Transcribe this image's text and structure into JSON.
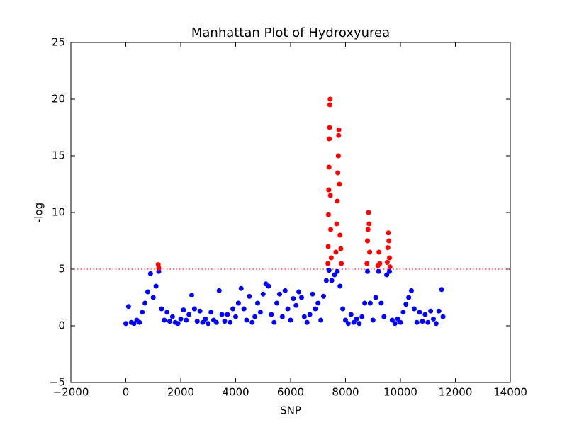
{
  "chart_data": {
    "type": "scatter",
    "title": "Manhattan Plot of Hydroxyurea",
    "x_label": "SNP",
    "y_label": "-log",
    "xlim": [
      -2000,
      14000
    ],
    "ylim": [
      -5,
      25
    ],
    "xticks": [
      {
        "value": -2000,
        "label": "−2000"
      },
      0,
      2000,
      4000,
      6000,
      8000,
      10000,
      12000,
      14000
    ],
    "yticks": [
      {
        "value": -5,
        "label": "−5"
      },
      0,
      5,
      10,
      15,
      20,
      25
    ],
    "threshold": 5,
    "threshold_color": "#ff0000",
    "series": [
      {
        "color": "#0000ff",
        "x": [
          0,
          100,
          200,
          300,
          400,
          500,
          600,
          700,
          800,
          900,
          1000,
          1100,
          1200,
          1300,
          1400,
          1500,
          1600,
          1700,
          1800,
          1900,
          2000,
          2100,
          2200,
          2300,
          2400,
          2500,
          2600,
          2700,
          2800,
          2900,
          3000,
          3100,
          3200,
          3300,
          3400,
          3500,
          3600,
          3700,
          3800,
          3900,
          4000,
          4100,
          4200,
          4300,
          4400,
          4500,
          4600,
          4700,
          4800,
          4900,
          5000,
          5100,
          5200,
          5300,
          5400,
          5500,
          5600,
          5700,
          5800,
          5900,
          6000,
          6100,
          6200,
          6300,
          6400,
          6500,
          6600,
          6700,
          6800,
          6900,
          7000,
          7100,
          7200,
          7300,
          7400,
          7500,
          7600,
          7700,
          7800,
          7900,
          8000,
          8100,
          8200,
          8300,
          8400,
          8500,
          8600,
          8700,
          8800,
          8900,
          9000,
          9100,
          9200,
          9300,
          9400,
          9500,
          9600,
          9700,
          9800,
          9900,
          10000,
          10100,
          10200,
          10300,
          10400,
          10500,
          10600,
          10700,
          10800,
          10900,
          11000,
          11100,
          11200,
          11300,
          11400,
          11500,
          11550
        ],
        "values": [
          0.2,
          1.7,
          0.3,
          0.2,
          0.5,
          0.3,
          1.2,
          2.0,
          3.0,
          4.6,
          2.5,
          3.5,
          4.8,
          1.5,
          0.5,
          1.2,
          0.4,
          0.8,
          0.3,
          0.2,
          0.6,
          1.4,
          0.5,
          1.0,
          2.7,
          1.5,
          0.4,
          1.3,
          0.3,
          0.6,
          0.2,
          1.2,
          0.5,
          0.3,
          3.1,
          1.0,
          0.4,
          1.0,
          0.3,
          1.5,
          0.8,
          2.0,
          3.3,
          1.5,
          0.5,
          2.6,
          0.3,
          0.8,
          2.0,
          1.2,
          2.8,
          3.7,
          3.5,
          1.0,
          0.3,
          2.0,
          2.8,
          0.8,
          3.1,
          1.5,
          0.5,
          2.4,
          1.8,
          3.0,
          2.5,
          0.8,
          0.3,
          1.0,
          2.8,
          1.5,
          2.0,
          0.5,
          2.6,
          4.0,
          4.9,
          4.0,
          4.5,
          4.8,
          3.5,
          1.5,
          0.5,
          0.2,
          1.0,
          0.3,
          0.6,
          0.2,
          0.8,
          2.0,
          4.8,
          2.0,
          0.5,
          2.5,
          4.8,
          2.0,
          0.8,
          4.5,
          4.8,
          0.5,
          0.2,
          0.6,
          0.3,
          1.2,
          1.9,
          2.5,
          3.1,
          1.5,
          0.3,
          1.2,
          0.4,
          1.0,
          0.3,
          1.3,
          0.6,
          0.2,
          1.3,
          3.2,
          0.8
        ]
      },
      {
        "color": "#ff0000",
        "x": [
          1180,
          1200,
          7360,
          7370,
          7380,
          7390,
          7400,
          7410,
          7420,
          7430,
          7440,
          7450,
          7460,
          7480,
          7650,
          7680,
          7700,
          7720,
          7740,
          7750,
          7760,
          7780,
          7800,
          7830,
          7850,
          8780,
          8800,
          8820,
          8840,
          8860,
          8880,
          9180,
          9220,
          9250,
          9520,
          9540,
          9560,
          9580,
          9600,
          9620
        ],
        "values": [
          5.4,
          5.1,
          5.5,
          7.0,
          9.8,
          12.0,
          14.0,
          16.5,
          17.5,
          19.5,
          20.0,
          11.5,
          8.5,
          6.0,
          6.5,
          9.0,
          11.0,
          13.5,
          15.0,
          16.8,
          17.3,
          12.5,
          8.0,
          6.8,
          5.5,
          5.5,
          7.5,
          8.5,
          10.0,
          9.0,
          6.5,
          5.3,
          6.5,
          5.5,
          5.6,
          6.9,
          8.2,
          7.5,
          6.0,
          5.2
        ]
      }
    ]
  }
}
